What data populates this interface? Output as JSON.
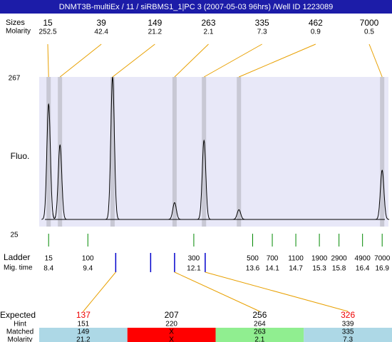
{
  "title": "DNMT3B-multiEx / 11 / siRBMS1_1|PC 3 (2007-05-03 96hrs) /Well ID 1223089",
  "chart_data": {
    "type": "line",
    "ylabel": "Fluo.",
    "ylim": [
      25,
      267
    ],
    "yticks": [
      267,
      25
    ],
    "xlim": [
      8.16,
      17.06
    ],
    "baseline": 47,
    "color": "#000000",
    "band_color": "#c8c8d4",
    "plot_color": "#e8e8f8",
    "row_labels": [
      "Sizes",
      "Molarity"
    ],
    "peaks": [
      {
        "size": 15,
        "molarity": 252.5,
        "time": 8.4,
        "height": 225
      },
      {
        "size": 39,
        "molarity": 42.4,
        "time": 8.69,
        "height": 162
      },
      {
        "size": 149,
        "molarity": 21.2,
        "time": 10.03,
        "height": 267
      },
      {
        "size": 263,
        "molarity": 2.1,
        "time": 11.61,
        "height": 73
      },
      {
        "size": 335,
        "molarity": 7.3,
        "time": 12.36,
        "height": 169
      },
      {
        "size": 462,
        "molarity": 0.9,
        "time": 13.25,
        "height": 62
      },
      {
        "size": 7000,
        "molarity": 0.5,
        "time": 16.9,
        "height": 123
      }
    ],
    "ladder": {
      "label": "Ladder",
      "time_label": "Mig. time",
      "color": "#008800",
      "sizes": [
        15,
        100,
        300,
        500,
        700,
        1100,
        1900,
        2900,
        4900,
        7000
      ],
      "times": [
        8.4,
        9.4,
        12.1,
        13.6,
        14.1,
        14.7,
        15.3,
        15.8,
        16.4,
        16.9
      ]
    },
    "expected": {
      "labels": [
        "Expected",
        "Hint",
        "Matched",
        "Molarity"
      ],
      "rows": [
        {
          "expected": 137,
          "color": "#ee0000",
          "hint": 151,
          "matched": 149,
          "molarity": 21.2,
          "band": "#add8e6",
          "time": 10.11
        },
        {
          "expected": 207,
          "color": "#000000",
          "hint": 220,
          "matched": "X",
          "molarity": "X",
          "band": "#ff0000",
          "time": 11.0
        },
        {
          "expected": 256,
          "color": "#000000",
          "hint": 264,
          "matched": 263,
          "molarity": 2.1,
          "band": "#90ee90",
          "time": 11.61
        },
        {
          "expected": 326,
          "color": "#ee0000",
          "hint": 339,
          "matched": 335,
          "molarity": 7.3,
          "band": "#add8e6",
          "time": 12.39
        }
      ]
    }
  }
}
